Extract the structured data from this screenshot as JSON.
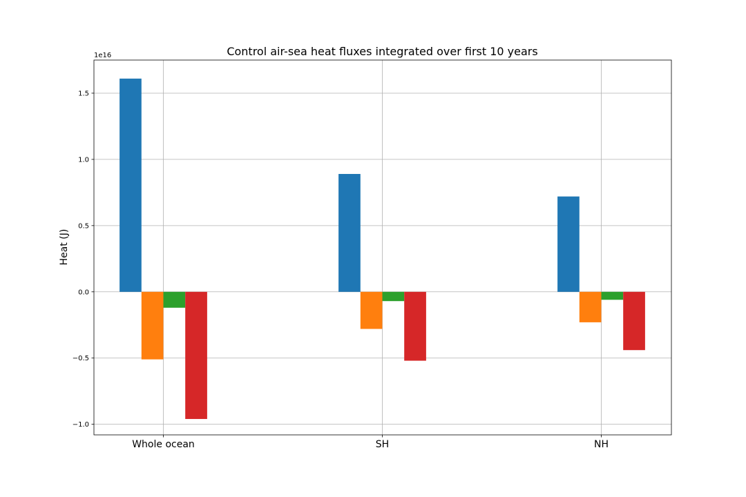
{
  "chart_data": {
    "type": "bar",
    "title": "Control air-sea heat fluxes integrated over first 10 years",
    "xlabel": "",
    "ylabel": "Heat (J)",
    "y_offset_label": "1e16",
    "y_scale": 1e+16,
    "categories": [
      "Whole ocean",
      "SH",
      "NH"
    ],
    "ylim": [
      -1.08,
      1.75
    ],
    "yticks": [
      -1.0,
      -0.5,
      0.0,
      0.5,
      1.0,
      1.5
    ],
    "ytick_labels": [
      "−1.0",
      "−0.5",
      "0.0",
      "0.5",
      "1.0",
      "1.5"
    ],
    "grid": true,
    "legend": false,
    "series": [
      {
        "color": "#1f77b4",
        "values": [
          1.61,
          0.89,
          0.72
        ]
      },
      {
        "color": "#ff7f0e",
        "values": [
          -0.51,
          -0.28,
          -0.23
        ]
      },
      {
        "color": "#2ca02c",
        "values": [
          -0.12,
          -0.07,
          -0.06
        ]
      },
      {
        "color": "#d62728",
        "values": [
          -0.96,
          -0.52,
          -0.44
        ]
      }
    ]
  }
}
